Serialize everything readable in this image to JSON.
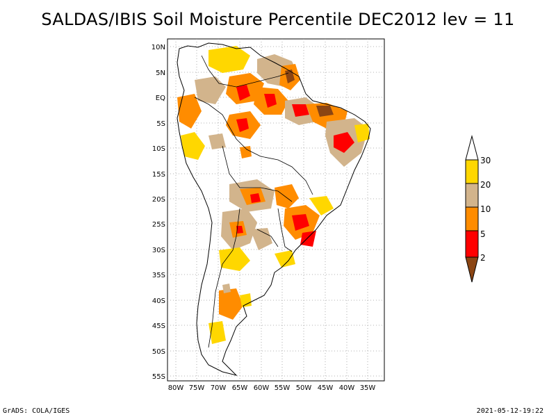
{
  "title": "SALDAS/IBIS Soil Moisture Percentile DEC2012 lev = 11",
  "footer": {
    "left": "GrADS: COLA/IGES",
    "right": "2021-05-12-19:22"
  },
  "map": {
    "region": "South America",
    "lon_range": [
      -82,
      -30
    ],
    "lat_range": [
      -56,
      11
    ],
    "lon_ticks": [
      "80W",
      "75W",
      "70W",
      "65W",
      "60W",
      "55W",
      "50W",
      "45W",
      "40W",
      "35W"
    ],
    "lat_ticks": [
      "10N",
      "5N",
      "EQ",
      "5S",
      "10S",
      "15S",
      "20S",
      "25S",
      "30S",
      "35S",
      "40S",
      "45S",
      "50S",
      "55S"
    ],
    "grid": "dotted, 5 degree",
    "boundaries": "country borders and coastlines"
  },
  "legend": {
    "labels": [
      "2",
      "5",
      "10",
      "20",
      "30"
    ],
    "colors": [
      "#8b4513",
      "#ff0000",
      "#ff8c00",
      "#d2b48c",
      "#ffd700"
    ],
    "arrow_low_color": "#8b4513",
    "arrow_high_color": "#ffffff"
  },
  "colors": {
    "frame": "#000000",
    "grid": "#999999"
  }
}
